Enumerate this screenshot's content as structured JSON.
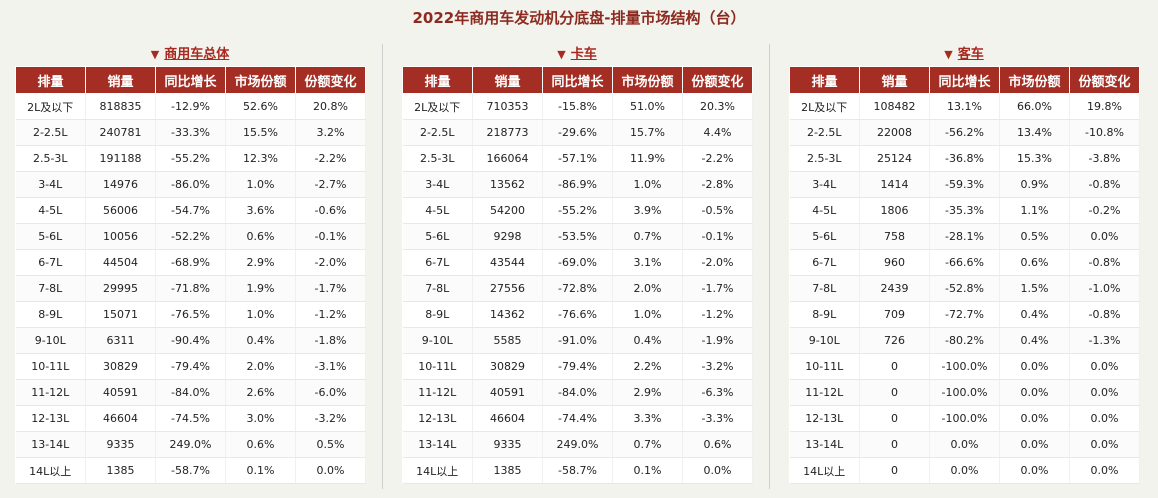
{
  "title": "2022年商用车发动机分底盘-排量市场结构（台）",
  "columns": [
    "排量",
    "销量",
    "同比增长",
    "市场份额",
    "份额变化"
  ],
  "panels": [
    {
      "marker": "▼",
      "label": "商用车总体",
      "rows": [
        [
          "2L及以下",
          "818835",
          "-12.9%",
          "52.6%",
          "20.8%"
        ],
        [
          "2-2.5L",
          "240781",
          "-33.3%",
          "15.5%",
          "3.2%"
        ],
        [
          "2.5-3L",
          "191188",
          "-55.2%",
          "12.3%",
          "-2.2%"
        ],
        [
          "3-4L",
          "14976",
          "-86.0%",
          "1.0%",
          "-2.7%"
        ],
        [
          "4-5L",
          "56006",
          "-54.7%",
          "3.6%",
          "-0.6%"
        ],
        [
          "5-6L",
          "10056",
          "-52.2%",
          "0.6%",
          "-0.1%"
        ],
        [
          "6-7L",
          "44504",
          "-68.9%",
          "2.9%",
          "-2.0%"
        ],
        [
          "7-8L",
          "29995",
          "-71.8%",
          "1.9%",
          "-1.7%"
        ],
        [
          "8-9L",
          "15071",
          "-76.5%",
          "1.0%",
          "-1.2%"
        ],
        [
          "9-10L",
          "6311",
          "-90.4%",
          "0.4%",
          "-1.8%"
        ],
        [
          "10-11L",
          "30829",
          "-79.4%",
          "2.0%",
          "-3.1%"
        ],
        [
          "11-12L",
          "40591",
          "-84.0%",
          "2.6%",
          "-6.0%"
        ],
        [
          "12-13L",
          "46604",
          "-74.5%",
          "3.0%",
          "-3.2%"
        ],
        [
          "13-14L",
          "9335",
          "249.0%",
          "0.6%",
          "0.5%"
        ],
        [
          "14L以上",
          "1385",
          "-58.7%",
          "0.1%",
          "0.0%"
        ]
      ]
    },
    {
      "marker": "▼",
      "label": "卡车",
      "rows": [
        [
          "2L及以下",
          "710353",
          "-15.8%",
          "51.0%",
          "20.3%"
        ],
        [
          "2-2.5L",
          "218773",
          "-29.6%",
          "15.7%",
          "4.4%"
        ],
        [
          "2.5-3L",
          "166064",
          "-57.1%",
          "11.9%",
          "-2.2%"
        ],
        [
          "3-4L",
          "13562",
          "-86.9%",
          "1.0%",
          "-2.8%"
        ],
        [
          "4-5L",
          "54200",
          "-55.2%",
          "3.9%",
          "-0.5%"
        ],
        [
          "5-6L",
          "9298",
          "-53.5%",
          "0.7%",
          "-0.1%"
        ],
        [
          "6-7L",
          "43544",
          "-69.0%",
          "3.1%",
          "-2.0%"
        ],
        [
          "7-8L",
          "27556",
          "-72.8%",
          "2.0%",
          "-1.7%"
        ],
        [
          "8-9L",
          "14362",
          "-76.6%",
          "1.0%",
          "-1.2%"
        ],
        [
          "9-10L",
          "5585",
          "-91.0%",
          "0.4%",
          "-1.9%"
        ],
        [
          "10-11L",
          "30829",
          "-79.4%",
          "2.2%",
          "-3.2%"
        ],
        [
          "11-12L",
          "40591",
          "-84.0%",
          "2.9%",
          "-6.3%"
        ],
        [
          "12-13L",
          "46604",
          "-74.4%",
          "3.3%",
          "-3.3%"
        ],
        [
          "13-14L",
          "9335",
          "249.0%",
          "0.7%",
          "0.6%"
        ],
        [
          "14L以上",
          "1385",
          "-58.7%",
          "0.1%",
          "0.0%"
        ]
      ]
    },
    {
      "marker": "▼",
      "label": "客车",
      "rows": [
        [
          "2L及以下",
          "108482",
          "13.1%",
          "66.0%",
          "19.8%"
        ],
        [
          "2-2.5L",
          "22008",
          "-56.2%",
          "13.4%",
          "-10.8%"
        ],
        [
          "2.5-3L",
          "25124",
          "-36.8%",
          "15.3%",
          "-3.8%"
        ],
        [
          "3-4L",
          "1414",
          "-59.3%",
          "0.9%",
          "-0.8%"
        ],
        [
          "4-5L",
          "1806",
          "-35.3%",
          "1.1%",
          "-0.2%"
        ],
        [
          "5-6L",
          "758",
          "-28.1%",
          "0.5%",
          "0.0%"
        ],
        [
          "6-7L",
          "960",
          "-66.6%",
          "0.6%",
          "-0.8%"
        ],
        [
          "7-8L",
          "2439",
          "-52.8%",
          "1.5%",
          "-1.0%"
        ],
        [
          "8-9L",
          "709",
          "-72.7%",
          "0.4%",
          "-0.8%"
        ],
        [
          "9-10L",
          "726",
          "-80.2%",
          "0.4%",
          "-1.3%"
        ],
        [
          "10-11L",
          "0",
          "-100.0%",
          "0.0%",
          "0.0%"
        ],
        [
          "11-12L",
          "0",
          "-100.0%",
          "0.0%",
          "0.0%"
        ],
        [
          "12-13L",
          "0",
          "-100.0%",
          "0.0%",
          "0.0%"
        ],
        [
          "13-14L",
          "0",
          "0.0%",
          "0.0%",
          "0.0%"
        ],
        [
          "14L以上",
          "0",
          "0.0%",
          "0.0%",
          "0.0%"
        ]
      ]
    }
  ]
}
